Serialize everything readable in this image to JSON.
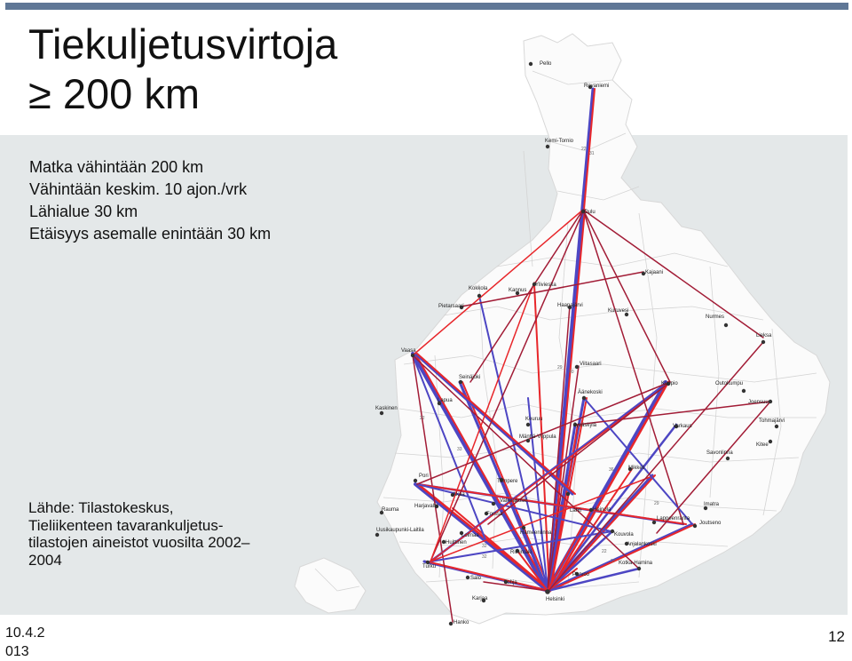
{
  "slide": {
    "title_line1": "Tiekuljetusvirtoja",
    "title_line2": "≥ 200 km",
    "criteria": [
      "Matka vähintään 200 km",
      "Vähintään keskim. 10 ajon./vrk",
      "Lähialue 30 km",
      "Etäisyys asemalle enintään 30 km"
    ],
    "source": [
      "Lähde: Tilastokeskus,",
      "Tieliikenteen tavarankuljetus-",
      "tilastojen aineistot vuosilta 2002–",
      "2004"
    ],
    "date_lines": [
      "10.4.2",
      "013"
    ],
    "page_number": "12"
  },
  "map": {
    "colors": {
      "land": "#fbfbfb",
      "border": "#d2d2d2",
      "sea": "#e4e8e9",
      "flow_red": "#e8262a",
      "flow_blue": "#4d46c3",
      "flow_dark": "#a21c36",
      "dot": "#333333"
    },
    "places": [
      {
        "name": "Pello"
      },
      {
        "name": "Rovaniemi"
      },
      {
        "name": "Kemi-Tornio"
      },
      {
        "name": "Oulu"
      },
      {
        "name": "Kajaani"
      },
      {
        "name": "Kokkola"
      },
      {
        "name": "Kannus"
      },
      {
        "name": "Ylivieska"
      },
      {
        "name": "Pietarsaari"
      },
      {
        "name": "Haapajärvi"
      },
      {
        "name": "Kuruvesi"
      },
      {
        "name": "Nurmes"
      },
      {
        "name": "Lieksa"
      },
      {
        "name": "Vaasa"
      },
      {
        "name": "Seinäjoki"
      },
      {
        "name": "Viitasaari"
      },
      {
        "name": "Äänekoski"
      },
      {
        "name": "Kuopio"
      },
      {
        "name": "Outokumpu"
      },
      {
        "name": "Joensuu"
      },
      {
        "name": "Kaskinen"
      },
      {
        "name": "Lapua"
      },
      {
        "name": "Keuruu"
      },
      {
        "name": "Jyväskylä"
      },
      {
        "name": "Varkaus"
      },
      {
        "name": "Tohmajärvi"
      },
      {
        "name": "Kitee"
      },
      {
        "name": "Mänttä-Vilppula"
      },
      {
        "name": "Savonlinna"
      },
      {
        "name": "Pori"
      },
      {
        "name": "Tampere"
      },
      {
        "name": "Mikkeli"
      },
      {
        "name": "Imatra"
      },
      {
        "name": "Lappeenranta"
      },
      {
        "name": "Joutseno"
      },
      {
        "name": "Rauma"
      },
      {
        "name": "Uusikaupunki-Laitila"
      },
      {
        "name": "Turku"
      },
      {
        "name": "Salo"
      },
      {
        "name": "Lohja"
      },
      {
        "name": "Helsinki"
      },
      {
        "name": "Hanko"
      },
      {
        "name": "Karjaa"
      },
      {
        "name": "Kotka-Hamina"
      },
      {
        "name": "Kouvola"
      },
      {
        "name": "Anjalankoski"
      },
      {
        "name": "Lahti"
      },
      {
        "name": "Heinola"
      },
      {
        "name": "Valkeakoski"
      },
      {
        "name": "Hämeenlinna"
      },
      {
        "name": "Riihimäki"
      },
      {
        "name": "Porvoo"
      },
      {
        "name": "Huittinen"
      },
      {
        "name": "Forssa"
      },
      {
        "name": "Loimaa"
      },
      {
        "name": "Akaa"
      },
      {
        "name": "Harjavalta"
      }
    ]
  }
}
